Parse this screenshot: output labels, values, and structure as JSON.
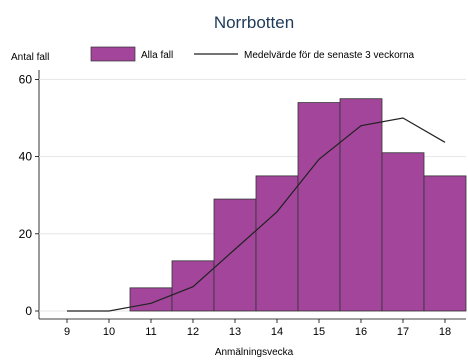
{
  "chart_data": {
    "type": "bar",
    "title": "Norrbotten",
    "ylabel": "Antal fall",
    "xlabel": "Anmälningsvecka",
    "ylim": [
      0,
      63
    ],
    "yticks": [
      0,
      20,
      40,
      60
    ],
    "categories": [
      "9",
      "10",
      "11",
      "12",
      "13",
      "14",
      "15",
      "16",
      "17",
      "18"
    ],
    "series": [
      {
        "name": "Alla fall",
        "kind": "bar",
        "color": "#a2459b",
        "values": [
          0,
          0,
          6,
          13,
          29,
          35,
          54,
          55,
          41,
          35
        ]
      },
      {
        "name": "Medelvärde för de senaste 3 veckorna",
        "kind": "line",
        "color": "#222222",
        "values": [
          0,
          0,
          2,
          6.3,
          16,
          25.7,
          39.3,
          48,
          50,
          43.7
        ]
      }
    ],
    "grid": true,
    "legend_position": "top"
  }
}
